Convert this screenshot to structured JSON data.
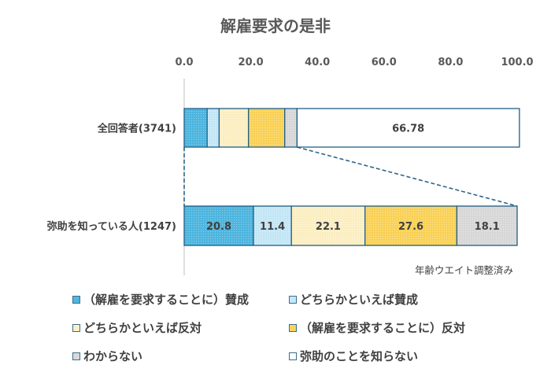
{
  "chart_data": {
    "type": "bar",
    "orientation": "horizontal",
    "stacked": true,
    "title": "解雇要求の是非",
    "xlim": [
      0,
      100
    ],
    "xticks": [
      "0.0",
      "20.0",
      "40.0",
      "60.0",
      "80.0",
      "100.0"
    ],
    "categories": [
      "全回答者(3741)",
      "弥助を知っている人(1247)"
    ],
    "series": [
      {
        "name": "（解雇を要求することに）賛成",
        "color": "#4fb7e0",
        "values": [
          6.9,
          20.8
        ],
        "labels": [
          "",
          "20.8"
        ]
      },
      {
        "name": "どちらかといえば賛成",
        "color": "#c5e8f7",
        "values": [
          3.6,
          11.4
        ],
        "labels": [
          "",
          "11.4"
        ]
      },
      {
        "name": "どちらかといえば反対",
        "color": "#fdf0c4",
        "values": [
          8.8,
          22.1
        ],
        "labels": [
          "",
          "22.1"
        ]
      },
      {
        "name": "（解雇を要求することに）反対",
        "color": "#fbd35a",
        "values": [
          10.9,
          27.6
        ],
        "labels": [
          "",
          "27.6"
        ]
      },
      {
        "name": "わからない",
        "color": "#d9d9d9",
        "values": [
          3.7,
          18.1
        ],
        "labels": [
          "",
          "18.1"
        ]
      },
      {
        "name": "弥助のことを知らない",
        "color": "#ffffff",
        "values": [
          66.78,
          0
        ],
        "labels": [
          "66.78",
          ""
        ]
      }
    ],
    "annotation": "年齢ウエイト調整済み",
    "legend_position": "bottom"
  },
  "styles": {
    "axis_color": "#bfbfbf",
    "bar_border": "#1f5f85",
    "connector_color": "#2d6587"
  }
}
